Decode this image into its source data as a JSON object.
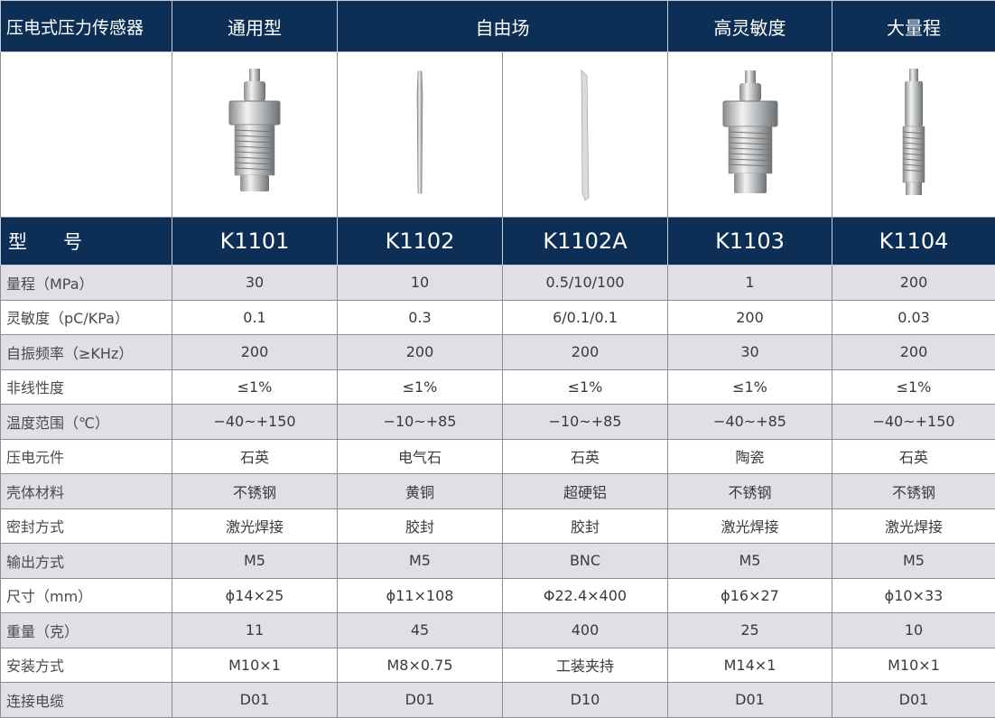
{
  "header": {
    "title": "压电式压力传感器",
    "groups": [
      "通用型",
      "自由场",
      "高灵敏度",
      "大量程"
    ]
  },
  "model_row": {
    "label": [
      "型",
      "号"
    ],
    "models": [
      "K1101",
      "K1102",
      "K1102A",
      "K1103",
      "K1104"
    ]
  },
  "images": [
    "sensor-threaded-hex",
    "sensor-pencil-probe",
    "sensor-blade-probe",
    "sensor-threaded-hex",
    "sensor-slim-threaded"
  ],
  "colors": {
    "header_bg": "#0e2f55",
    "alt_row_bg": "#e0dfe5"
  },
  "rows": [
    {
      "label": "量程（MPa）",
      "values": [
        "30",
        "10",
        "0.5/10/100",
        "1",
        "200"
      ]
    },
    {
      "label": "灵敏度（pC/KPa）",
      "values": [
        "0.1",
        "0.3",
        "6/0.1/0.1",
        "200",
        "0.03"
      ]
    },
    {
      "label": "自振频率（≥KHz）",
      "values": [
        "200",
        "200",
        "200",
        "30",
        "200"
      ]
    },
    {
      "label": "非线性度",
      "values": [
        "≤1%",
        "≤1%",
        "≤1%",
        "≤1%",
        "≤1%"
      ]
    },
    {
      "label": "温度范围（℃）",
      "values": [
        "−40~+150",
        "−10~+85",
        "−10~+85",
        "−40~+85",
        "−40~+150"
      ]
    },
    {
      "label": "压电元件",
      "values": [
        "石英",
        "电气石",
        "石英",
        "陶瓷",
        "石英"
      ]
    },
    {
      "label": "壳体材料",
      "values": [
        "不锈钢",
        "黄铜",
        "超硬铝",
        "不锈钢",
        "不锈钢"
      ]
    },
    {
      "label": "密封方式",
      "values": [
        "激光焊接",
        "胶封",
        "胶封",
        "激光焊接",
        "激光焊接"
      ]
    },
    {
      "label": "输出方式",
      "values": [
        "M5",
        "M5",
        "BNC",
        "M5",
        "M5"
      ]
    },
    {
      "label": "尺寸（mm）",
      "values": [
        "ϕ14×25",
        "ϕ11×108",
        "Φ22.4×400",
        "ϕ16×27",
        "ϕ10×33"
      ]
    },
    {
      "label": "重量（克）",
      "values": [
        "11",
        "45",
        "400",
        "25",
        "10"
      ]
    },
    {
      "label": "安装方式",
      "values": [
        "M10×1",
        "M8×0.75",
        "工装夹持",
        "M14×1",
        "M10×1"
      ]
    },
    {
      "label": "连接电缆",
      "values": [
        "D01",
        "D01",
        "D10",
        "D01",
        "D01"
      ]
    }
  ]
}
